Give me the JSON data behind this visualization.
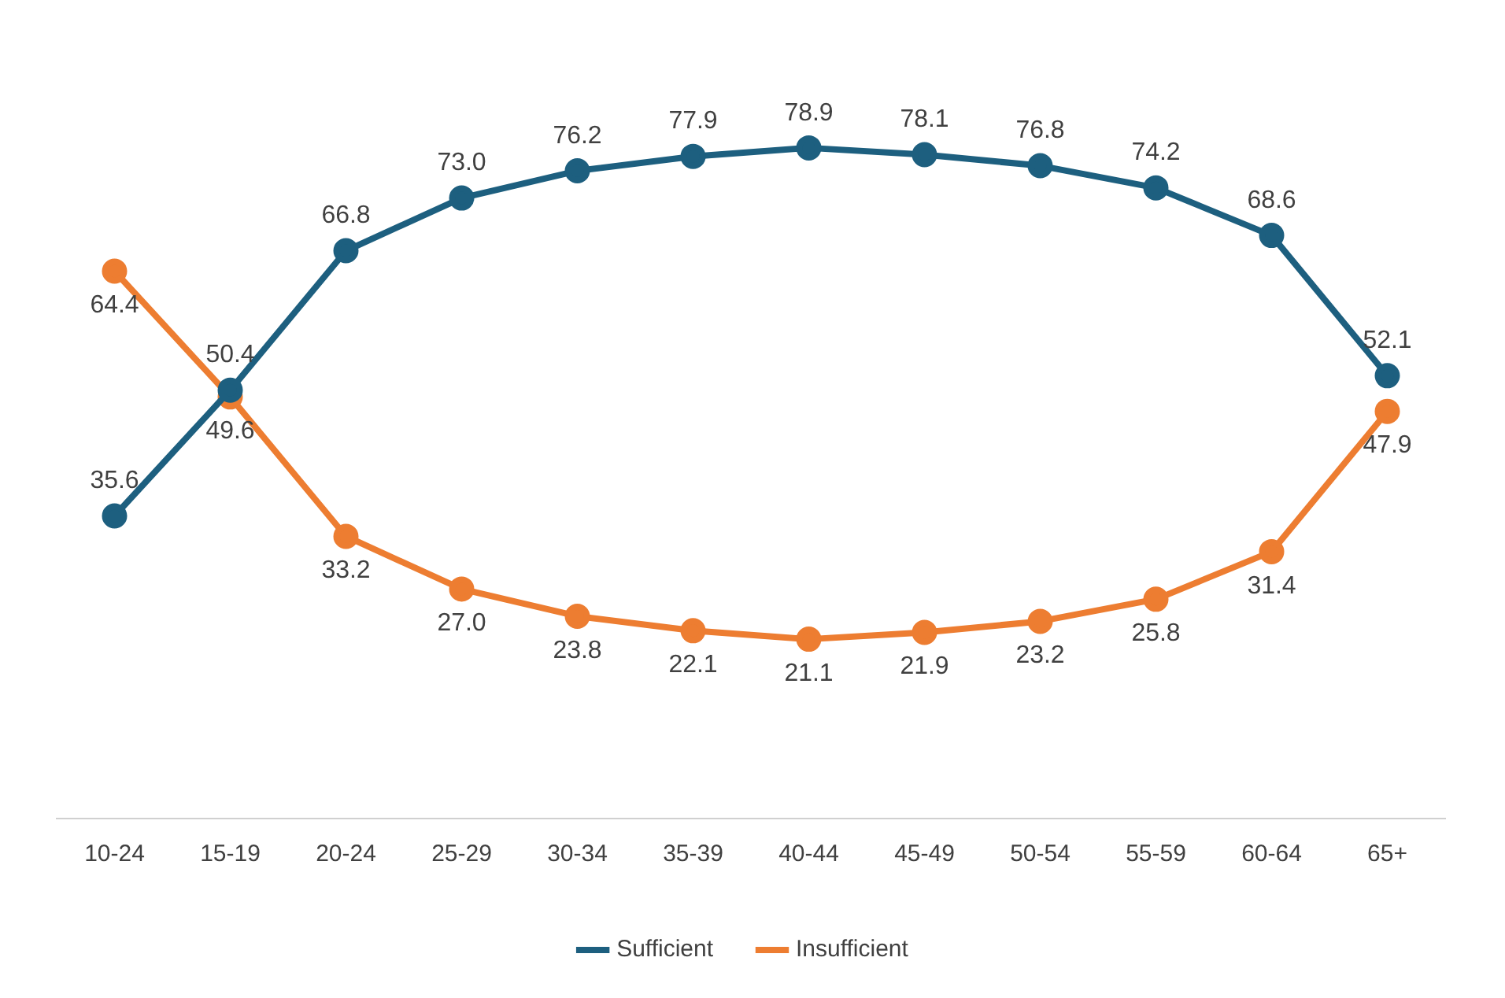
{
  "chart_data": {
    "type": "line",
    "categories": [
      "10-24",
      "15-19",
      "20-24",
      "25-29",
      "30-34",
      "35-39",
      "40-44",
      "45-49",
      "50-54",
      "55-59",
      "60-64",
      "65+"
    ],
    "series": [
      {
        "name": "Sufficient",
        "color": "#1d5f7f",
        "values": [
          35.6,
          50.4,
          66.8,
          73.0,
          76.2,
          77.9,
          78.9,
          78.1,
          76.8,
          74.2,
          68.6,
          52.1
        ],
        "value_labels": [
          "35.6",
          "50.4",
          "66.8",
          "73.0",
          "76.2",
          "77.9",
          "78.9",
          "78.1",
          "76.8",
          "74.2",
          "68.6",
          "52.1"
        ]
      },
      {
        "name": "Insufficient",
        "color": "#ed7d31",
        "values": [
          64.4,
          49.6,
          33.2,
          27.0,
          23.8,
          22.1,
          21.1,
          21.9,
          23.2,
          25.8,
          31.4,
          47.9
        ],
        "value_labels": [
          "64.4",
          "49.6",
          "33.2",
          "27.0",
          "23.8",
          "22.1",
          "21.1",
          "21.9",
          "23.2",
          "25.8",
          "31.4",
          "47.9"
        ]
      }
    ],
    "legend": "bottom",
    "grid": false,
    "marker": "circle",
    "line_style": "solid"
  }
}
